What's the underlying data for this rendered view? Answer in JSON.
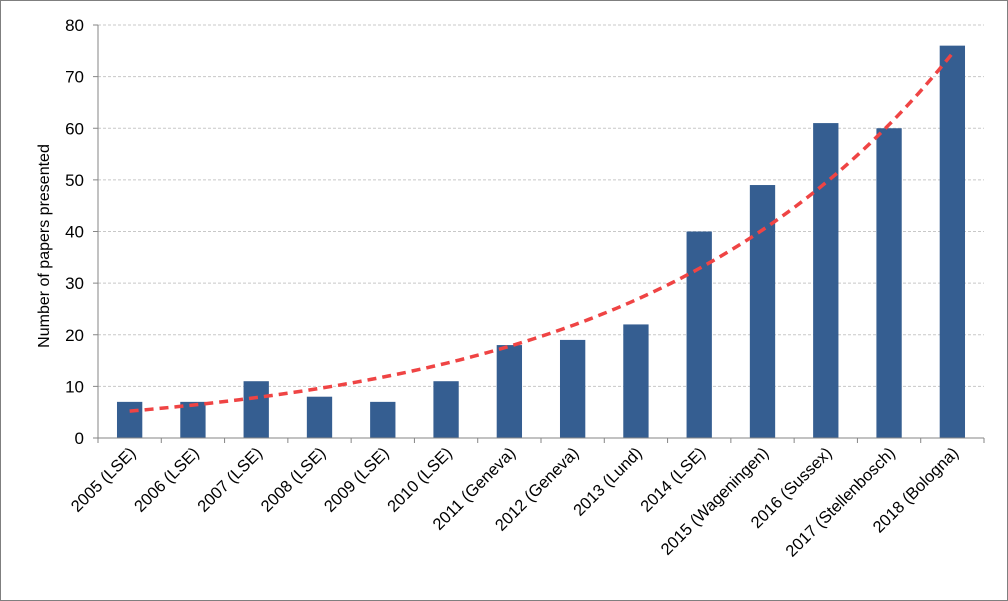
{
  "chart_data": {
    "type": "bar",
    "title": "",
    "xlabel": "",
    "ylabel": "Number of papers presented",
    "categories": [
      "2005 (LSE)",
      "2006 (LSE)",
      "2007 (LSE)",
      "2008 (LSE)",
      "2009 (LSE)",
      "2010 (LSE)",
      "2011 (Geneva)",
      "2012 (Geneva)",
      "2013 (Lund)",
      "2014 (LSE)",
      "2015 (Wageningen)",
      "2016 (Sussex)",
      "2017 (Stellenbosch)",
      "2018 (Bologna)"
    ],
    "series": [
      {
        "values": [
          7,
          7,
          11,
          8,
          7,
          11,
          18,
          19,
          22,
          40,
          49,
          61,
          60,
          76
        ],
        "color": "#355e91"
      }
    ],
    "trendline": {
      "type": "exponential",
      "style": "dashed",
      "color": "#ef4444",
      "start_value": 5.2,
      "end_value": 74.5
    },
    "ylim": [
      0,
      80
    ],
    "yticks": [
      0,
      10,
      20,
      30,
      40,
      50,
      60,
      70,
      80
    ],
    "grid": "horizontal dashed",
    "legend": "none"
  }
}
